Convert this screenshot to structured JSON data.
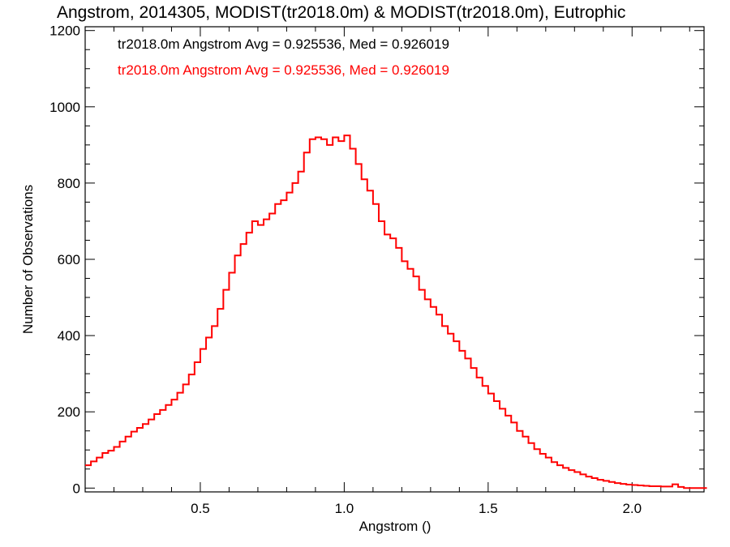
{
  "chart_data": {
    "type": "histogram",
    "title": "Angstrom, 2014305, MODIST(tr2018.0m) & MODIST(tr2018.0m), Eutrophic",
    "xlabel": "Angstrom ()",
    "ylabel": "Number of Observations",
    "xlim": [
      0.1,
      2.25
    ],
    "ylim": [
      -10,
      1210
    ],
    "x_ticks": [
      {
        "value": 0.5,
        "label": "0.5"
      },
      {
        "value": 1.0,
        "label": "1.0"
      },
      {
        "value": 1.5,
        "label": "1.5"
      },
      {
        "value": 2.0,
        "label": "2.0"
      }
    ],
    "y_ticks": [
      {
        "value": 0,
        "label": "0"
      },
      {
        "value": 200,
        "label": "200"
      },
      {
        "value": 400,
        "label": "400"
      },
      {
        "value": 600,
        "label": "600"
      },
      {
        "value": 800,
        "label": "800"
      },
      {
        "value": 1000,
        "label": "1000"
      },
      {
        "value": 1200,
        "label": "1200"
      }
    ],
    "annotations": [
      {
        "text": "tr2018.0m Angstrom Avg = 0.925536, Med = 0.926019",
        "color": "#000000"
      },
      {
        "text": "tr2018.0m Angstrom Avg = 0.925536, Med = 0.926019",
        "color": "#ff0000"
      }
    ],
    "series": [
      {
        "color": "#ff0000",
        "bin_width": 0.01,
        "points": [
          [
            0.1,
            60
          ],
          [
            0.12,
            70
          ],
          [
            0.14,
            80
          ],
          [
            0.16,
            92
          ],
          [
            0.18,
            98
          ],
          [
            0.2,
            108
          ],
          [
            0.22,
            122
          ],
          [
            0.24,
            135
          ],
          [
            0.26,
            148
          ],
          [
            0.28,
            158
          ],
          [
            0.3,
            168
          ],
          [
            0.32,
            180
          ],
          [
            0.34,
            194
          ],
          [
            0.36,
            205
          ],
          [
            0.38,
            218
          ],
          [
            0.4,
            232
          ],
          [
            0.42,
            250
          ],
          [
            0.44,
            272
          ],
          [
            0.46,
            298
          ],
          [
            0.48,
            330
          ],
          [
            0.5,
            365
          ],
          [
            0.52,
            395
          ],
          [
            0.54,
            425
          ],
          [
            0.56,
            470
          ],
          [
            0.58,
            520
          ],
          [
            0.6,
            565
          ],
          [
            0.62,
            610
          ],
          [
            0.64,
            640
          ],
          [
            0.66,
            670
          ],
          [
            0.68,
            700
          ],
          [
            0.7,
            690
          ],
          [
            0.72,
            705
          ],
          [
            0.74,
            720
          ],
          [
            0.76,
            745
          ],
          [
            0.78,
            755
          ],
          [
            0.8,
            775
          ],
          [
            0.82,
            800
          ],
          [
            0.84,
            830
          ],
          [
            0.86,
            880
          ],
          [
            0.88,
            915
          ],
          [
            0.9,
            920
          ],
          [
            0.92,
            915
          ],
          [
            0.94,
            900
          ],
          [
            0.96,
            920
          ],
          [
            0.98,
            910
          ],
          [
            1.0,
            925
          ],
          [
            1.02,
            890
          ],
          [
            1.04,
            850
          ],
          [
            1.06,
            810
          ],
          [
            1.08,
            780
          ],
          [
            1.1,
            745
          ],
          [
            1.12,
            700
          ],
          [
            1.14,
            665
          ],
          [
            1.16,
            655
          ],
          [
            1.18,
            630
          ],
          [
            1.2,
            595
          ],
          [
            1.22,
            575
          ],
          [
            1.24,
            555
          ],
          [
            1.26,
            520
          ],
          [
            1.28,
            495
          ],
          [
            1.3,
            475
          ],
          [
            1.32,
            455
          ],
          [
            1.34,
            425
          ],
          [
            1.36,
            405
          ],
          [
            1.38,
            385
          ],
          [
            1.4,
            360
          ],
          [
            1.42,
            340
          ],
          [
            1.44,
            315
          ],
          [
            1.46,
            290
          ],
          [
            1.48,
            268
          ],
          [
            1.5,
            248
          ],
          [
            1.52,
            228
          ],
          [
            1.54,
            208
          ],
          [
            1.56,
            190
          ],
          [
            1.58,
            172
          ],
          [
            1.6,
            150
          ],
          [
            1.62,
            135
          ],
          [
            1.64,
            118
          ],
          [
            1.66,
            102
          ],
          [
            1.68,
            90
          ],
          [
            1.7,
            80
          ],
          [
            1.72,
            68
          ],
          [
            1.74,
            60
          ],
          [
            1.76,
            53
          ],
          [
            1.78,
            47
          ],
          [
            1.8,
            42
          ],
          [
            1.82,
            36
          ],
          [
            1.84,
            30
          ],
          [
            1.86,
            26
          ],
          [
            1.88,
            22
          ],
          [
            1.9,
            19
          ],
          [
            1.92,
            16
          ],
          [
            1.94,
            13
          ],
          [
            1.96,
            11
          ],
          [
            1.98,
            9
          ],
          [
            2.0,
            8
          ],
          [
            2.02,
            7
          ],
          [
            2.04,
            6
          ],
          [
            2.06,
            5
          ],
          [
            2.08,
            5
          ],
          [
            2.1,
            4
          ],
          [
            2.12,
            4
          ],
          [
            2.14,
            10
          ],
          [
            2.16,
            3
          ],
          [
            2.18,
            0
          ],
          [
            2.2,
            0
          ],
          [
            2.25,
            0
          ]
        ]
      }
    ]
  }
}
